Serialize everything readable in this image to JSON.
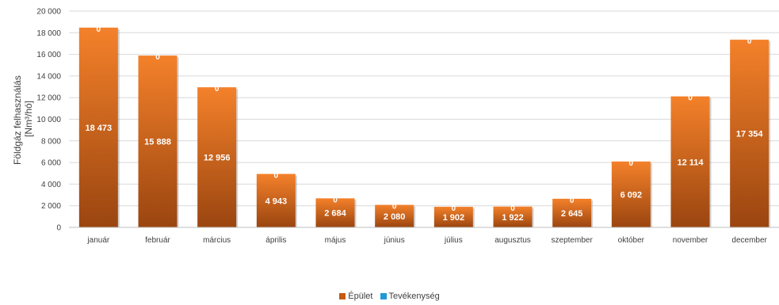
{
  "chart_data": {
    "type": "bar",
    "title": "",
    "ylabel_lines": [
      "Földgáz felhasználás",
      "[Nm³/hó]"
    ],
    "xlabel": "",
    "ylim": [
      0,
      20000
    ],
    "ytick_step": 2000,
    "ytick_labels": [
      "0",
      "2 000",
      "4 000",
      "6 000",
      "8 000",
      "10 000",
      "12 000",
      "14 000",
      "16 000",
      "18 000",
      "20 000"
    ],
    "categories": [
      "január",
      "február",
      "március",
      "április",
      "május",
      "június",
      "július",
      "augusztus",
      "szeptember",
      "október",
      "november",
      "december"
    ],
    "series": [
      {
        "name": "Épület",
        "color": "#c55a11",
        "values": [
          18473,
          15888,
          12956,
          4943,
          2684,
          2080,
          1902,
          1922,
          2645,
          6092,
          12114,
          17354
        ],
        "labels": [
          "18 473",
          "15 888",
          "12 956",
          "4 943",
          "2 684",
          "2 080",
          "1 902",
          "1 922",
          "2 645",
          "6 092",
          "12 114",
          "17 354"
        ]
      },
      {
        "name": "Tevékenység",
        "color": "#1f9ad6",
        "values": [
          0,
          0,
          0,
          0,
          0,
          0,
          0,
          0,
          0,
          0,
          0,
          0
        ],
        "labels": [
          "0",
          "0",
          "0",
          "0",
          "0",
          "0",
          "0",
          "0",
          "0",
          "0",
          "0",
          "0"
        ]
      }
    ],
    "stacked": true,
    "grid": true,
    "legend_position": "bottom"
  }
}
